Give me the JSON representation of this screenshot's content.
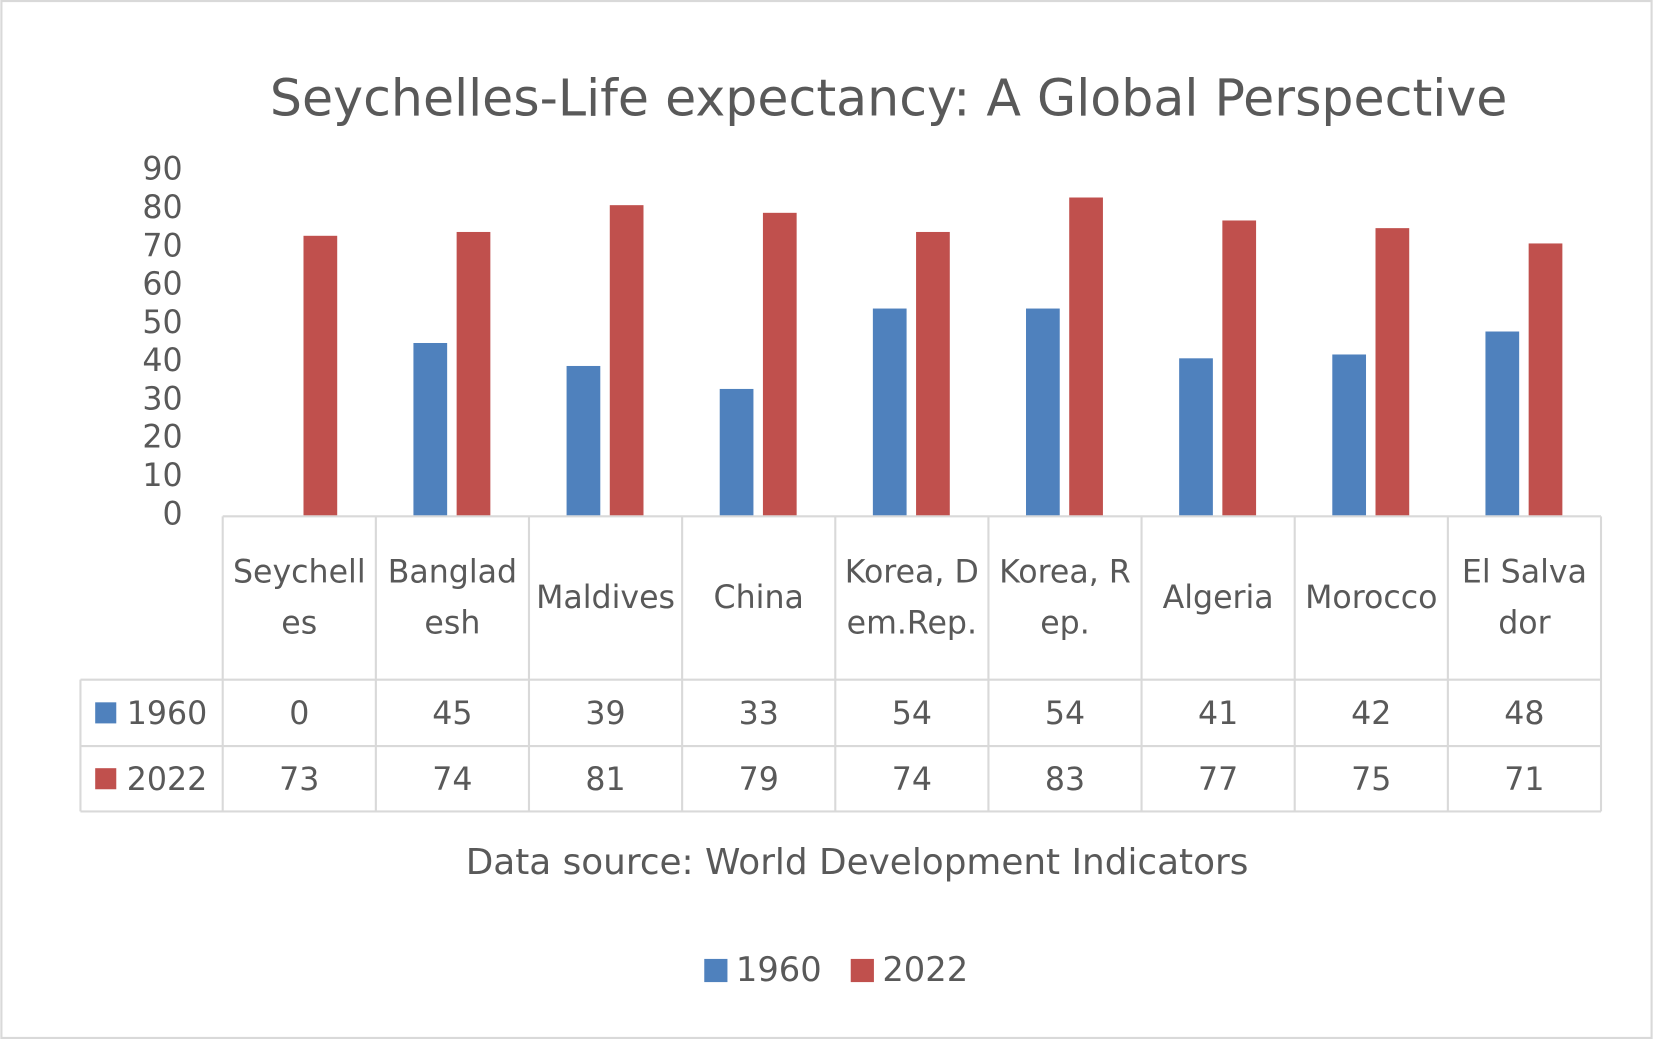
{
  "chart_data": {
    "type": "bar",
    "title": "Seychelles-Life expectancy: A Global Perspective",
    "caption": "Data source: World Development Indicators",
    "categories": [
      "Seychelles",
      "Bangladesh",
      "Maldives",
      "China",
      "Korea, Dem.Rep.",
      "Korea, Rep.",
      "Algeria",
      "Morocco",
      "El Salvador"
    ],
    "series": [
      {
        "name": "1960",
        "color": "#4f81bd",
        "values": [
          0,
          45,
          39,
          33,
          54,
          54,
          41,
          42,
          48
        ]
      },
      {
        "name": "2022",
        "color": "#c0504d",
        "values": [
          73,
          74,
          81,
          79,
          74,
          83,
          77,
          75,
          71
        ]
      }
    ],
    "ylim": [
      0,
      90
    ],
    "yticks": [
      0,
      10,
      20,
      30,
      40,
      50,
      60,
      70,
      80,
      90
    ],
    "legend": "bottom"
  }
}
